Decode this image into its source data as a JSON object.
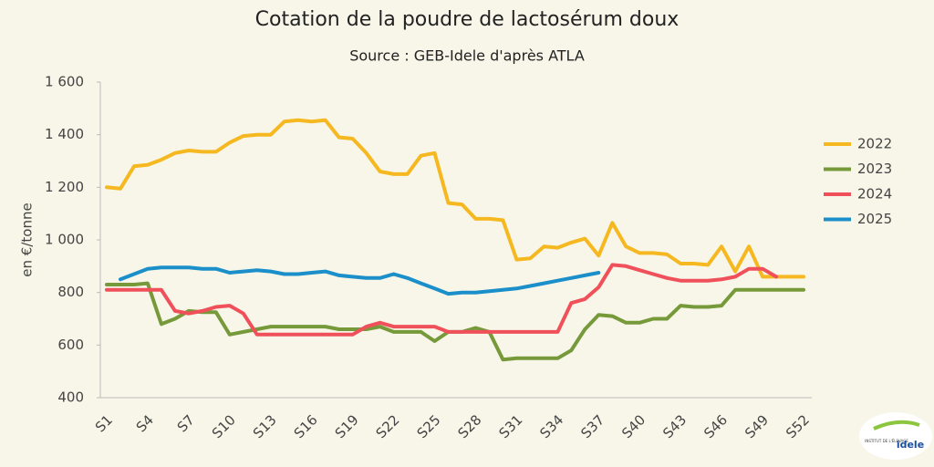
{
  "chart_data": {
    "type": "line",
    "title": "Cotation de la poudre de lactosérum doux",
    "subtitle": "Source : GEB-Idele d'après ATLA",
    "y_label": "en €/tonne",
    "categories": [
      "S1",
      null,
      null,
      "S4",
      null,
      null,
      "S7",
      null,
      null,
      "S10",
      null,
      null,
      "S13",
      null,
      null,
      "S16",
      null,
      null,
      "S19",
      null,
      null,
      "S22",
      null,
      null,
      "S25",
      null,
      null,
      "S28",
      null,
      null,
      "S31",
      null,
      null,
      "S34",
      null,
      null,
      "S37",
      null,
      null,
      "S40",
      null,
      null,
      "S43",
      null,
      null,
      "S46",
      null,
      null,
      "S49",
      null,
      null,
      "S52"
    ],
    "ylim": [
      400,
      1600
    ],
    "yticks": [
      400,
      600,
      800,
      {
        "value": 1000,
        "label": "1 000"
      },
      {
        "value": 1200,
        "label": "1 200"
      },
      {
        "value": 1400,
        "label": "1 400"
      },
      {
        "value": 1600,
        "label": "1 600"
      }
    ],
    "legend": "right",
    "series": [
      {
        "name": "2022",
        "color": "#f5b820",
        "values": [
          1200,
          1195,
          1280,
          1285,
          1305,
          1330,
          1340,
          1335,
          1335,
          1370,
          1395,
          1400,
          1400,
          1450,
          1455,
          1450,
          1455,
          1390,
          1385,
          1330,
          1260,
          1250,
          1250,
          1320,
          1330,
          1140,
          1135,
          1080,
          1080,
          1075,
          925,
          930,
          975,
          970,
          990,
          1005,
          940,
          1065,
          975,
          950,
          950,
          945,
          910,
          910,
          905,
          975,
          880,
          975,
          860,
          860,
          860,
          860
        ]
      },
      {
        "name": "2023",
        "color": "#76993a",
        "values": [
          830,
          830,
          830,
          835,
          680,
          700,
          730,
          725,
          725,
          640,
          650,
          660,
          670,
          670,
          670,
          670,
          670,
          660,
          660,
          660,
          670,
          650,
          650,
          650,
          615,
          650,
          650,
          665,
          650,
          545,
          550,
          550,
          550,
          550,
          580,
          660,
          715,
          710,
          685,
          685,
          700,
          700,
          750,
          745,
          745,
          750,
          810,
          810,
          810,
          810,
          810,
          810
        ]
      },
      {
        "name": "2024",
        "color": "#f0505a",
        "values": [
          810,
          810,
          810,
          810,
          810,
          730,
          720,
          730,
          745,
          750,
          720,
          640,
          640,
          640,
          640,
          640,
          640,
          640,
          640,
          670,
          685,
          670,
          670,
          670,
          670,
          650,
          650,
          650,
          650,
          650,
          650,
          650,
          650,
          650,
          760,
          775,
          820,
          905,
          900,
          885,
          870,
          855,
          845,
          845,
          845,
          850,
          860,
          890,
          890,
          860,
          null,
          null
        ]
      },
      {
        "name": "2025",
        "color": "#1a8fc9",
        "values": [
          null,
          850,
          870,
          890,
          895,
          895,
          895,
          890,
          890,
          875,
          880,
          885,
          880,
          870,
          870,
          875,
          880,
          865,
          860,
          855,
          855,
          870,
          855,
          835,
          815,
          795,
          800,
          800,
          805,
          810,
          815,
          825,
          835,
          845,
          855,
          865,
          875,
          null,
          null,
          null,
          null,
          null,
          null,
          null,
          null,
          null,
          null,
          null,
          null,
          null,
          null,
          null
        ]
      }
    ]
  },
  "logo": {
    "line1": "INSTITUT DE L'ÉLEVAGE",
    "brand": "idele"
  }
}
